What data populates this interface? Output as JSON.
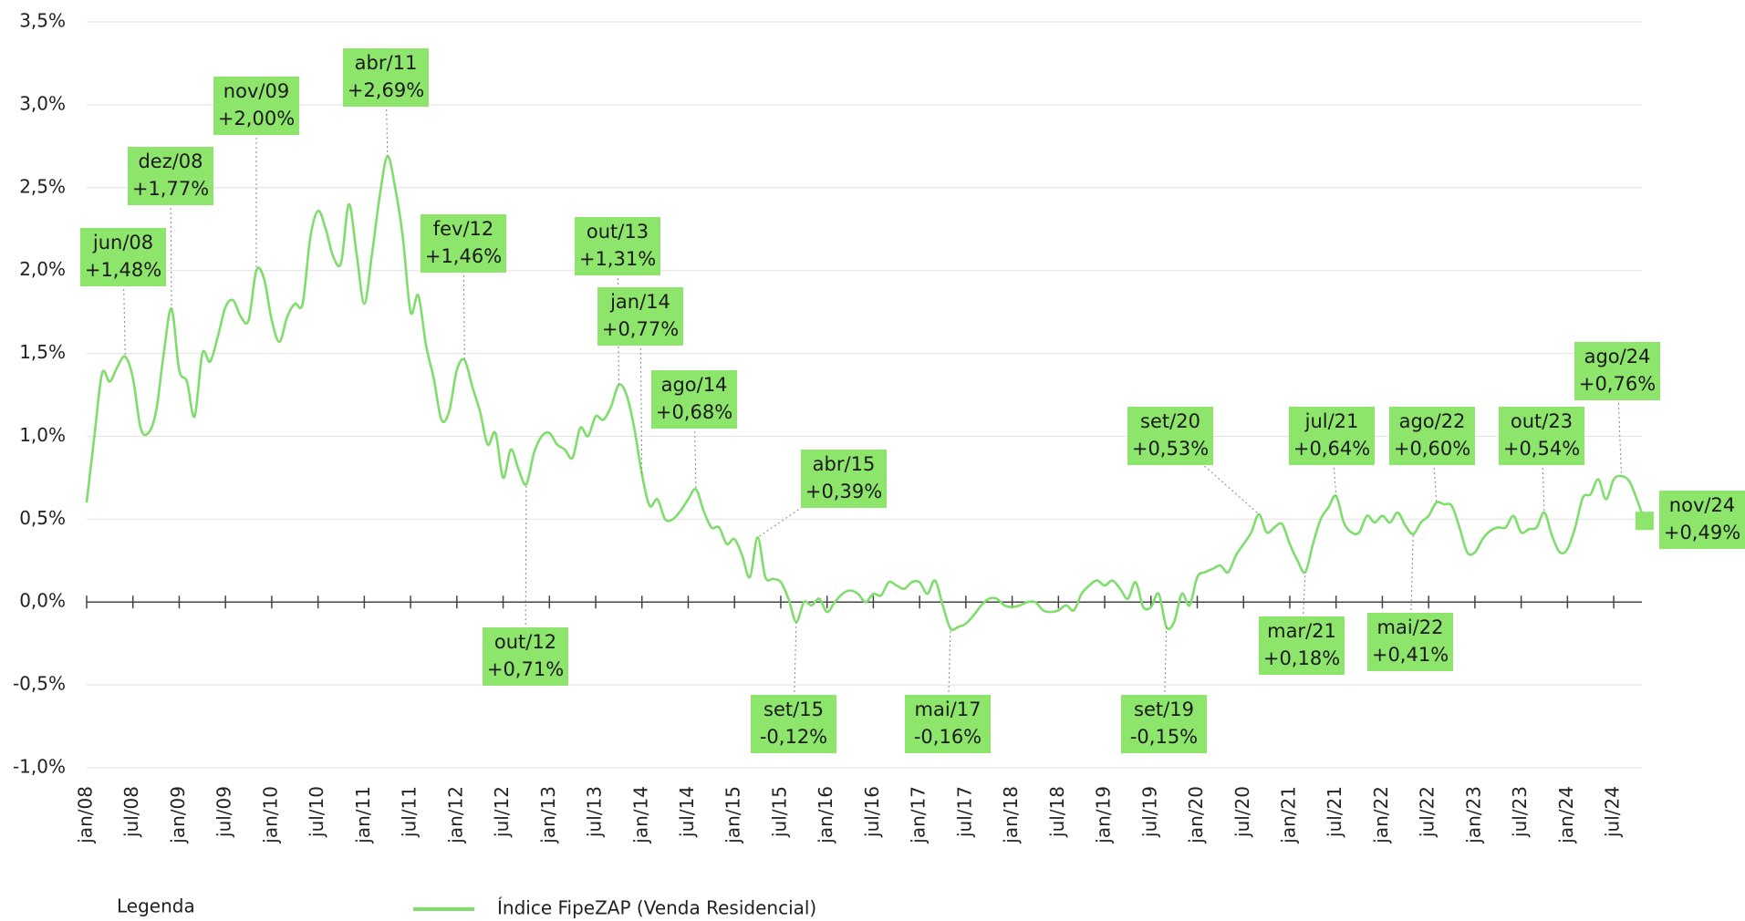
{
  "chart_data": {
    "type": "line",
    "categories": [
      "jan/08",
      null,
      null,
      null,
      null,
      null,
      "jul/08",
      null,
      null,
      null,
      null,
      null,
      "jan/09",
      null,
      null,
      null,
      null,
      null,
      "jul/09",
      null,
      null,
      null,
      null,
      null,
      "jan/10",
      null,
      null,
      null,
      null,
      null,
      "jul/10",
      null,
      null,
      null,
      null,
      null,
      "jan/11",
      null,
      null,
      null,
      null,
      null,
      "jul/11",
      null,
      null,
      null,
      null,
      null,
      "jan/12",
      null,
      null,
      null,
      null,
      null,
      "jul/12",
      null,
      null,
      null,
      null,
      null,
      "jan/13",
      null,
      null,
      null,
      null,
      null,
      "jul/13",
      null,
      null,
      null,
      null,
      null,
      "jan/14",
      null,
      null,
      null,
      null,
      null,
      "jul/14",
      null,
      null,
      null,
      null,
      null,
      "jan/15",
      null,
      null,
      null,
      null,
      null,
      "jul/15",
      null,
      null,
      null,
      null,
      null,
      "jan/16",
      null,
      null,
      null,
      null,
      null,
      "jul/16",
      null,
      null,
      null,
      null,
      null,
      "jan/17",
      null,
      null,
      null,
      null,
      null,
      "jul/17",
      null,
      null,
      null,
      null,
      null,
      "jan/18",
      null,
      null,
      null,
      null,
      null,
      "jul/18",
      null,
      null,
      null,
      null,
      null,
      "jan/19",
      null,
      null,
      null,
      null,
      null,
      "jul/19",
      null,
      null,
      null,
      null,
      null,
      "jan/20",
      null,
      null,
      null,
      null,
      null,
      "jul/20",
      null,
      null,
      null,
      null,
      null,
      "jan/21",
      null,
      null,
      null,
      null,
      null,
      "jul/21",
      null,
      null,
      null,
      null,
      null,
      "jan/22",
      null,
      null,
      null,
      null,
      null,
      "jul/22",
      null,
      null,
      null,
      null,
      null,
      "jan/23",
      null,
      null,
      null,
      null,
      null,
      "jul/23",
      null,
      null,
      null,
      null,
      null,
      "jan/24",
      null,
      null,
      null,
      null,
      null,
      "jul/24",
      null,
      null,
      null,
      null
    ],
    "series": [
      {
        "name": "Índice FipeZAP (Venda Residencial)",
        "color": "#7fdd6c",
        "values": [
          0.6,
          1.0,
          1.38,
          1.33,
          1.42,
          1.48,
          1.35,
          1.05,
          1.02,
          1.15,
          1.5,
          1.77,
          1.4,
          1.33,
          1.12,
          1.5,
          1.45,
          1.6,
          1.78,
          1.82,
          1.72,
          1.7,
          2.0,
          1.95,
          1.7,
          1.57,
          1.72,
          1.8,
          1.8,
          2.2,
          2.36,
          2.25,
          2.08,
          2.05,
          2.4,
          2.1,
          1.8,
          2.1,
          2.45,
          2.69,
          2.5,
          2.2,
          1.75,
          1.85,
          1.55,
          1.35,
          1.1,
          1.15,
          1.4,
          1.46,
          1.3,
          1.15,
          0.95,
          1.02,
          0.75,
          0.92,
          0.8,
          0.71,
          0.9,
          1.0,
          1.02,
          0.95,
          0.92,
          0.87,
          1.05,
          1.0,
          1.12,
          1.1,
          1.18,
          1.31,
          1.25,
          1.05,
          0.77,
          0.58,
          0.62,
          0.5,
          0.5,
          0.55,
          0.62,
          0.68,
          0.55,
          0.45,
          0.45,
          0.35,
          0.38,
          0.28,
          0.15,
          0.39,
          0.15,
          0.14,
          0.12,
          0.02,
          -0.12,
          0.0,
          -0.02,
          0.02,
          -0.06,
          0.0,
          0.05,
          0.07,
          0.05,
          0.0,
          0.05,
          0.04,
          0.12,
          0.1,
          0.08,
          0.12,
          0.12,
          0.05,
          0.13,
          -0.02,
          -0.16,
          -0.15,
          -0.13,
          -0.08,
          -0.02,
          0.02,
          0.02,
          -0.02,
          -0.03,
          -0.02,
          0.0,
          0.0,
          -0.05,
          -0.06,
          -0.05,
          -0.02,
          -0.05,
          0.05,
          0.1,
          0.13,
          0.1,
          0.13,
          0.08,
          0.02,
          0.12,
          -0.03,
          -0.03,
          0.05,
          -0.15,
          -0.12,
          0.05,
          -0.02,
          0.15,
          0.18,
          0.2,
          0.22,
          0.18,
          0.28,
          0.35,
          0.42,
          0.53,
          0.42,
          0.45,
          0.47,
          0.35,
          0.25,
          0.18,
          0.35,
          0.5,
          0.57,
          0.64,
          0.48,
          0.42,
          0.42,
          0.52,
          0.48,
          0.52,
          0.48,
          0.54,
          0.46,
          0.41,
          0.48,
          0.52,
          0.6,
          0.59,
          0.58,
          0.45,
          0.3,
          0.3,
          0.38,
          0.43,
          0.45,
          0.45,
          0.52,
          0.42,
          0.44,
          0.45,
          0.54,
          0.4,
          0.3,
          0.32,
          0.45,
          0.63,
          0.65,
          0.74,
          0.62,
          0.74,
          0.76,
          0.73,
          0.62,
          0.49
        ]
      }
    ],
    "ylim": [
      -1,
      3.5
    ],
    "yticks": [
      {
        "value": -1,
        "label": "-1,0%"
      },
      {
        "value": -0.5,
        "label": "-0,5%"
      },
      {
        "value": 0,
        "label": "0,0%"
      },
      {
        "value": 0.5,
        "label": "0,5%"
      },
      {
        "value": 1,
        "label": "1,0%"
      },
      {
        "value": 1.5,
        "label": "1,5%"
      },
      {
        "value": 2,
        "label": "2,0%"
      },
      {
        "value": 2.5,
        "label": "2,5%"
      },
      {
        "value": 3,
        "label": "3,0%"
      },
      {
        "value": 3.5,
        "label": "3,5%"
      }
    ],
    "grid": true,
    "annotation_color": "#8ee56b",
    "legend_title": "Legenda",
    "annotations": [
      {
        "label": "jun/08",
        "text": "+1,48%"
      },
      {
        "label": "dez/08",
        "text": "+1,77%"
      },
      {
        "label": "nov/09",
        "text": "+2,00%"
      },
      {
        "label": "abr/11",
        "text": "+2,69%"
      },
      {
        "label": "fev/12",
        "text": "+1,46%"
      },
      {
        "label": "out/12",
        "text": "+0,71%"
      },
      {
        "label": "out/13",
        "text": "+1,31%"
      },
      {
        "label": "jan/14",
        "text": "+0,77%"
      },
      {
        "label": "ago/14",
        "text": "+0,68%"
      },
      {
        "label": "abr/15",
        "text": "+0,39%"
      },
      {
        "label": "set/15",
        "text": "-0,12%"
      },
      {
        "label": "mai/17",
        "text": "-0,16%"
      },
      {
        "label": "set/19",
        "text": "-0,15%"
      },
      {
        "label": "set/20",
        "text": "+0,53%"
      },
      {
        "label": "mar/21",
        "text": "+0,18%"
      },
      {
        "label": "jul/21",
        "text": "+0,64%"
      },
      {
        "label": "mai/22",
        "text": "+0,41%"
      },
      {
        "label": "ago/22",
        "text": "+0,60%"
      },
      {
        "label": "out/23",
        "text": "+0,54%"
      },
      {
        "label": "ago/24",
        "text": "+0,76%"
      },
      {
        "label": "nov/24",
        "text": "+0,49%"
      }
    ]
  }
}
